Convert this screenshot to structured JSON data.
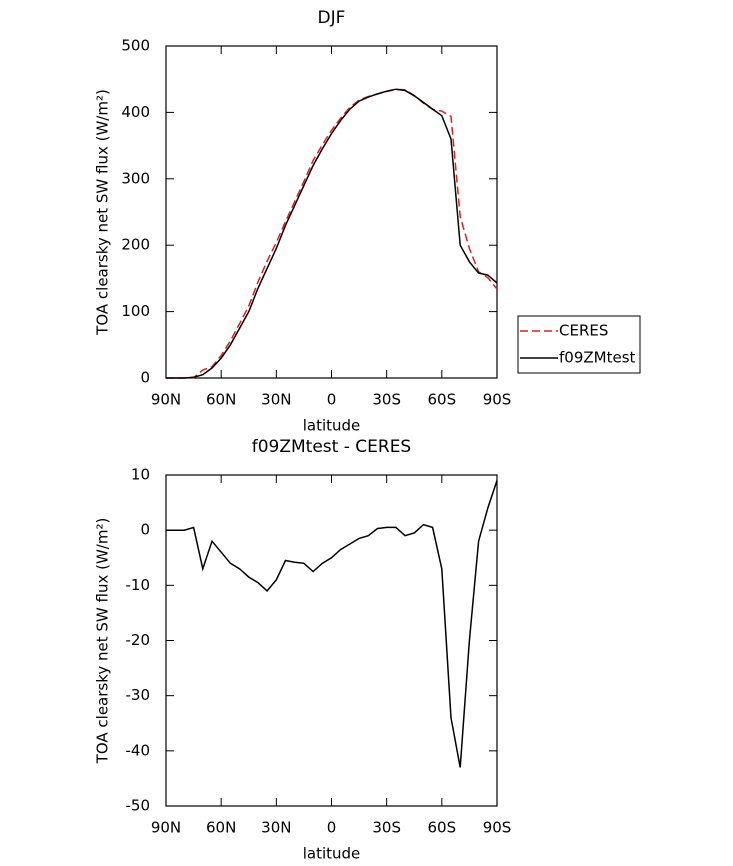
{
  "chart_data": [
    {
      "type": "line",
      "title": "DJF",
      "xlabel": "latitude",
      "ylabel": "TOA clearsky net SW flux (W/m²)",
      "x": [
        90,
        85,
        80,
        75,
        70,
        65,
        60,
        55,
        50,
        45,
        40,
        35,
        30,
        25,
        20,
        15,
        10,
        5,
        0,
        -5,
        -10,
        -15,
        -20,
        -25,
        -30,
        -35,
        -40,
        -45,
        -50,
        -55,
        -60,
        -65,
        -70,
        -75,
        -80,
        -85,
        -90
      ],
      "xlim": [
        90,
        -90
      ],
      "xticks": [
        {
          "value": 90,
          "label": "90N"
        },
        {
          "value": 60,
          "label": "60N"
        },
        {
          "value": 30,
          "label": "30N"
        },
        0,
        {
          "value": -30,
          "label": "30S"
        },
        {
          "value": -60,
          "label": "60S"
        },
        {
          "value": -90,
          "label": "90S"
        }
      ],
      "ylim": [
        0,
        500
      ],
      "yticks": [
        0,
        100,
        200,
        300,
        400,
        500
      ],
      "legend": "right",
      "series": [
        {
          "name": "CERES",
          "color": "#e0201e",
          "dashed": true,
          "values": [
            0,
            0,
            0,
            0.5,
            12,
            17,
            34,
            56,
            82,
            108.5,
            144.5,
            176,
            204,
            235.5,
            265.8,
            296,
            327.5,
            351,
            373,
            391.5,
            407.5,
            418.5,
            424,
            427.7,
            431.5,
            434.5,
            434,
            425.5,
            414,
            404.5,
            402,
            394,
            243,
            195,
            160,
            151,
            134
          ]
        },
        {
          "name": "f09ZMtest",
          "color": "#000000",
          "dashed": false,
          "values": [
            0,
            0,
            0,
            1,
            5,
            15,
            30,
            50,
            75,
            100,
            135,
            165,
            195,
            230,
            260,
            290,
            320,
            345,
            368,
            388,
            405,
            417,
            423,
            428,
            432,
            435,
            433,
            425,
            415,
            405,
            395,
            360,
            200,
            175,
            158,
            155,
            143
          ]
        }
      ]
    },
    {
      "type": "line",
      "title": "f09ZMtest - CERES",
      "xlabel": "latitude",
      "ylabel": "TOA clearsky net SW flux (W/m²)",
      "x": [
        90,
        85,
        80,
        75,
        70,
        65,
        60,
        55,
        50,
        45,
        40,
        35,
        30,
        25,
        20,
        15,
        10,
        5,
        0,
        -5,
        -10,
        -15,
        -20,
        -25,
        -30,
        -35,
        -40,
        -45,
        -50,
        -55,
        -60,
        -65,
        -70,
        -75,
        -80,
        -85,
        -90
      ],
      "xlim": [
        90,
        -90
      ],
      "xticks": [
        {
          "value": 90,
          "label": "90N"
        },
        {
          "value": 60,
          "label": "60N"
        },
        {
          "value": 30,
          "label": "30N"
        },
        0,
        {
          "value": -30,
          "label": "30S"
        },
        {
          "value": -60,
          "label": "60S"
        },
        {
          "value": -90,
          "label": "90S"
        }
      ],
      "ylim": [
        -50,
        10
      ],
      "yticks": [
        -50,
        -40,
        -30,
        -20,
        -10,
        0,
        10
      ],
      "series": [
        {
          "color": "#000000",
          "dashed": false,
          "values": [
            0,
            0,
            0,
            0.5,
            -7,
            -2,
            -4,
            -6,
            -7,
            -8.5,
            -9.5,
            -11,
            -9,
            -5.5,
            -5.8,
            -6,
            -7.5,
            -6,
            -5,
            -3.5,
            -2.5,
            -1.5,
            -1,
            0.3,
            0.5,
            0.5,
            -1,
            -0.5,
            1,
            0.5,
            -7,
            -34,
            -43,
            -20,
            -2,
            4,
            9
          ]
        }
      ]
    }
  ]
}
